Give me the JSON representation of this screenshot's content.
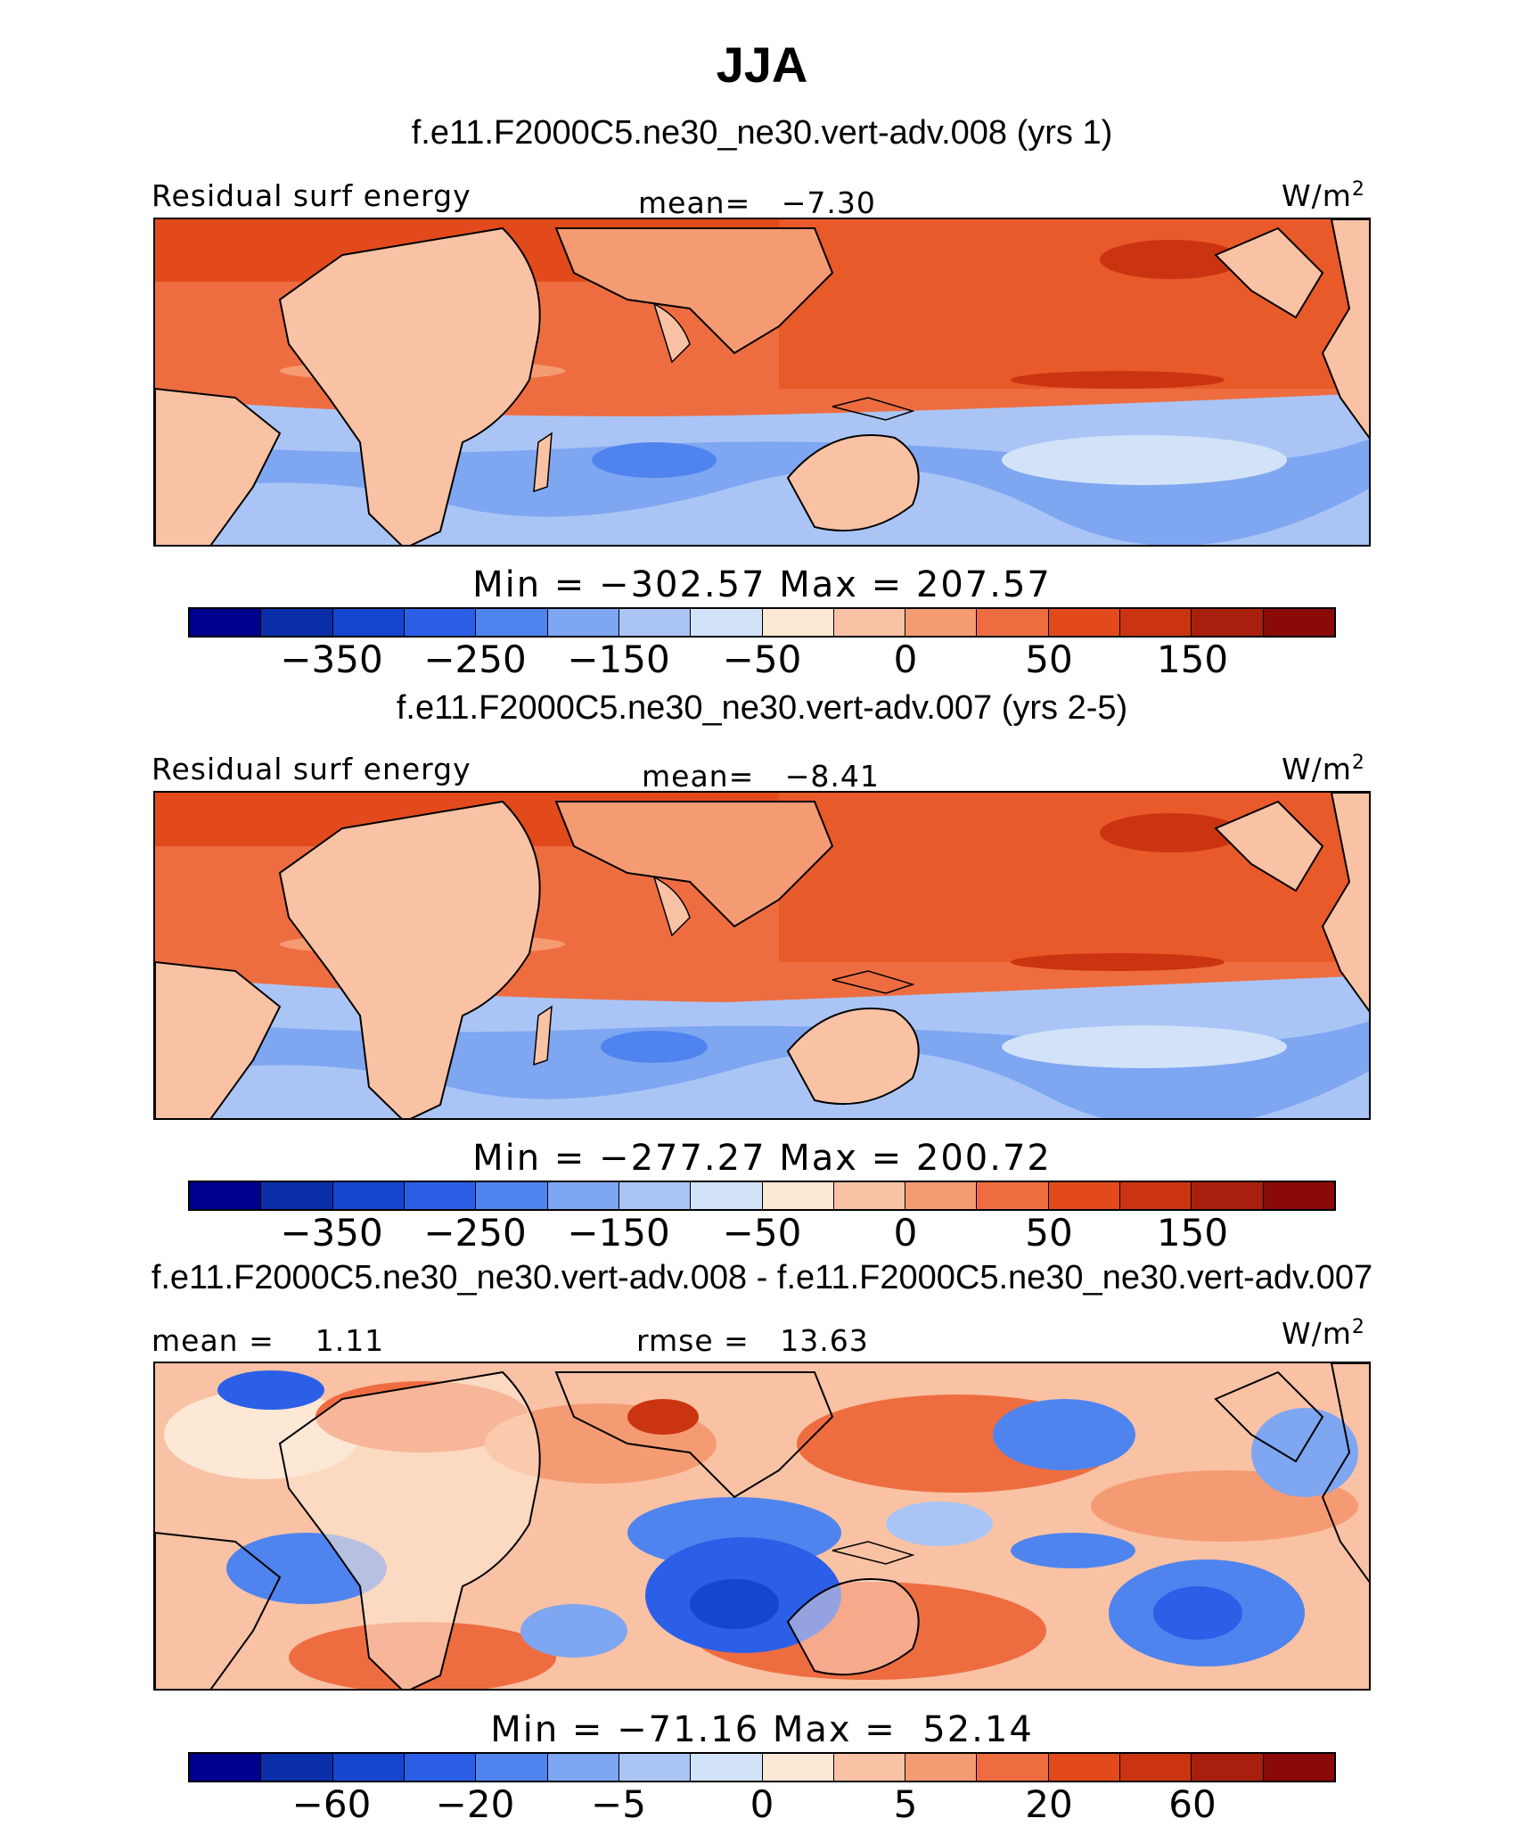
{
  "title": "JJA",
  "chart_data": [
    {
      "type": "heatmap",
      "title": "f.e11.F2000C5.ne30_ne30.vert-adv.008 (yrs 1)",
      "variable": "Residual surf energy",
      "units_base": "W/m",
      "units_exp": "2",
      "stat_label": "mean=",
      "stat_value": "−7.30",
      "min_label": "Min =",
      "min_value": "−302.57",
      "max_label": "Max =",
      "max_value": "207.57",
      "colorbar_ticks": [
        "−350",
        "−250",
        "−150",
        "−50",
        "0",
        "50",
        "150"
      ],
      "colorbar_colors": [
        "#00008f",
        "#0a2fa8",
        "#1646cf",
        "#2b5fe8",
        "#4f84ef",
        "#7ea6f1",
        "#aac5f5",
        "#d2e2f8",
        "#fde8d6",
        "#f9c2a4",
        "#f59b74",
        "#ee6d40",
        "#e24a1c",
        "#cb3411",
        "#a8200d",
        "#8a0a08"
      ]
    },
    {
      "type": "heatmap",
      "title": "f.e11.F2000C5.ne30_ne30.vert-adv.007 (yrs 2-5)",
      "variable": "Residual surf energy",
      "units_base": "W/m",
      "units_exp": "2",
      "stat_label": "mean=",
      "stat_value": "−8.41",
      "min_label": "Min =",
      "min_value": "−277.27",
      "max_label": "Max =",
      "max_value": "200.72",
      "colorbar_ticks": [
        "−350",
        "−250",
        "−150",
        "−50",
        "0",
        "50",
        "150"
      ],
      "colorbar_colors": [
        "#00008f",
        "#0a2fa8",
        "#1646cf",
        "#2b5fe8",
        "#4f84ef",
        "#7ea6f1",
        "#aac5f5",
        "#d2e2f8",
        "#fde8d6",
        "#f9c2a4",
        "#f59b74",
        "#ee6d40",
        "#e24a1c",
        "#cb3411",
        "#a8200d",
        "#8a0a08"
      ]
    },
    {
      "type": "heatmap",
      "title": "f.e11.F2000C5.ne30_ne30.vert-adv.008 - f.e11.F2000C5.ne30_ne30.vert-adv.007",
      "units_base": "W/m",
      "units_exp": "2",
      "mean_label": "mean =",
      "mean_value": "1.11",
      "rmse_label": "rmse =",
      "rmse_value": "13.63",
      "min_label": "Min =",
      "min_value": "−71.16",
      "max_label": "Max =",
      "max_value": "52.14",
      "colorbar_ticks": [
        "−60",
        "−20",
        "−5",
        "0",
        "5",
        "20",
        "60"
      ],
      "colorbar_colors": [
        "#00008f",
        "#0a2fa8",
        "#1646cf",
        "#2b5fe8",
        "#4f84ef",
        "#7ea6f1",
        "#aac5f5",
        "#d2e2f8",
        "#fde8d6",
        "#f9c2a4",
        "#f59b74",
        "#ee6d40",
        "#e24a1c",
        "#cb3411",
        "#a8200d",
        "#8a0a08"
      ]
    }
  ]
}
